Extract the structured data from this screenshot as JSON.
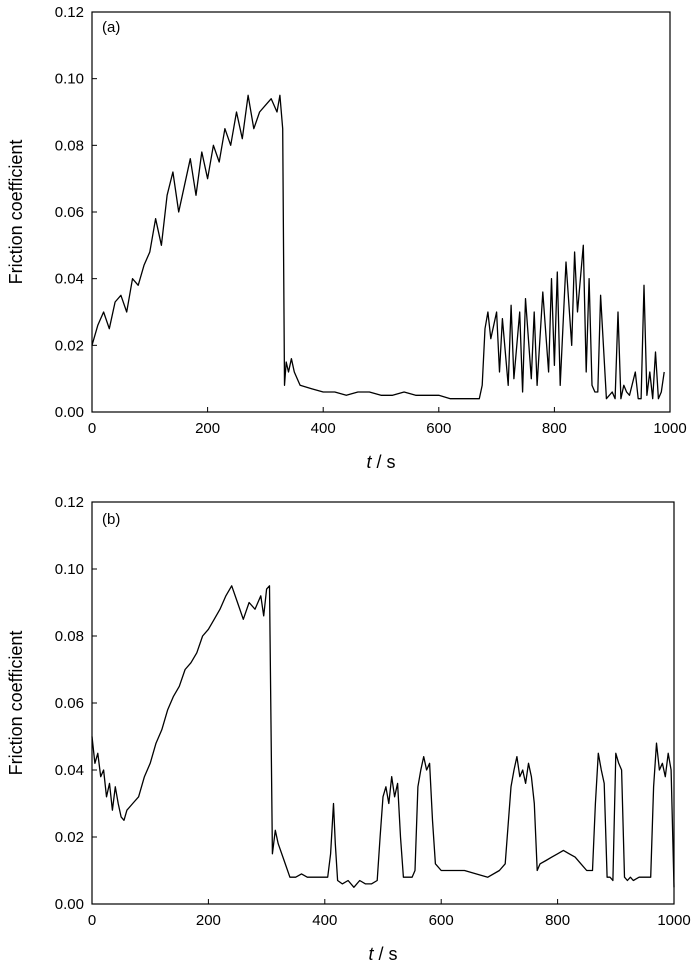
{
  "chart_data": [
    {
      "type": "line",
      "panel_label": "(a)",
      "xlabel_italic": "t",
      "xlabel_rest": " / s",
      "ylabel": "Friction coefficient",
      "xlim": [
        0,
        1000
      ],
      "ylim": [
        0,
        0.12
      ],
      "xticks": [
        "0",
        "200",
        "400",
        "600",
        "800",
        "1000"
      ],
      "yticks": [
        "0.00",
        "0.02",
        "0.04",
        "0.06",
        "0.08",
        "0.10",
        "0.12"
      ],
      "grid": false,
      "series": [
        {
          "color": "#000000",
          "x": [
            0,
            10,
            20,
            30,
            40,
            50,
            60,
            70,
            80,
            90,
            100,
            110,
            120,
            130,
            140,
            150,
            160,
            170,
            180,
            190,
            200,
            210,
            220,
            230,
            240,
            250,
            260,
            270,
            280,
            290,
            300,
            310,
            320,
            325,
            330,
            333,
            336,
            340,
            345,
            350,
            360,
            380,
            400,
            420,
            440,
            460,
            480,
            500,
            520,
            540,
            560,
            580,
            600,
            620,
            640,
            660,
            670,
            675,
            680,
            685,
            690,
            700,
            705,
            710,
            720,
            725,
            730,
            740,
            745,
            750,
            760,
            765,
            770,
            780,
            790,
            795,
            800,
            805,
            810,
            820,
            830,
            835,
            840,
            850,
            855,
            860,
            865,
            870,
            875,
            880,
            890,
            900,
            905,
            910,
            915,
            920,
            925,
            930,
            940,
            945,
            950,
            955,
            960,
            965,
            970,
            975,
            980,
            985,
            990
          ],
          "y": [
            0.02,
            0.026,
            0.03,
            0.025,
            0.033,
            0.035,
            0.03,
            0.04,
            0.038,
            0.044,
            0.048,
            0.058,
            0.05,
            0.065,
            0.072,
            0.06,
            0.068,
            0.076,
            0.065,
            0.078,
            0.07,
            0.08,
            0.075,
            0.085,
            0.08,
            0.09,
            0.082,
            0.095,
            0.085,
            0.09,
            0.092,
            0.094,
            0.09,
            0.095,
            0.085,
            0.008,
            0.015,
            0.012,
            0.016,
            0.012,
            0.008,
            0.007,
            0.006,
            0.006,
            0.005,
            0.006,
            0.006,
            0.005,
            0.005,
            0.006,
            0.005,
            0.005,
            0.005,
            0.004,
            0.004,
            0.004,
            0.004,
            0.008,
            0.025,
            0.03,
            0.022,
            0.03,
            0.012,
            0.028,
            0.008,
            0.032,
            0.01,
            0.03,
            0.006,
            0.034,
            0.01,
            0.03,
            0.008,
            0.036,
            0.012,
            0.04,
            0.014,
            0.042,
            0.008,
            0.045,
            0.02,
            0.048,
            0.03,
            0.05,
            0.012,
            0.04,
            0.008,
            0.006,
            0.006,
            0.035,
            0.004,
            0.006,
            0.004,
            0.03,
            0.004,
            0.008,
            0.006,
            0.005,
            0.012,
            0.004,
            0.004,
            0.038,
            0.005,
            0.012,
            0.004,
            0.018,
            0.004,
            0.006,
            0.012
          ]
        }
      ]
    },
    {
      "type": "line",
      "panel_label": "(b)",
      "xlabel_italic": "t",
      "xlabel_rest": " / s",
      "ylabel": "Friction coefficient",
      "xlim": [
        0,
        1000
      ],
      "ylim": [
        0,
        0.12
      ],
      "xticks": [
        "0",
        "200",
        "400",
        "600",
        "800",
        "1000"
      ],
      "yticks": [
        "0.00",
        "0.02",
        "0.04",
        "0.06",
        "0.08",
        "0.10",
        "0.12"
      ],
      "grid": false,
      "series": [
        {
          "color": "#000000",
          "x": [
            0,
            5,
            10,
            15,
            20,
            25,
            30,
            35,
            40,
            45,
            50,
            55,
            60,
            70,
            80,
            90,
            100,
            110,
            120,
            130,
            140,
            150,
            160,
            170,
            180,
            190,
            200,
            210,
            220,
            230,
            240,
            250,
            260,
            270,
            280,
            290,
            295,
            300,
            305,
            310,
            315,
            320,
            330,
            340,
            350,
            360,
            370,
            380,
            390,
            400,
            405,
            410,
            415,
            418,
            422,
            430,
            440,
            450,
            460,
            470,
            480,
            490,
            495,
            500,
            505,
            510,
            515,
            520,
            525,
            530,
            535,
            540,
            545,
            550,
            555,
            560,
            565,
            570,
            575,
            580,
            585,
            590,
            600,
            620,
            640,
            660,
            680,
            700,
            710,
            720,
            725,
            730,
            735,
            740,
            745,
            750,
            755,
            760,
            765,
            770,
            780,
            790,
            800,
            810,
            820,
            830,
            840,
            850,
            860,
            865,
            870,
            875,
            880,
            885,
            890,
            895,
            900,
            905,
            910,
            915,
            920,
            925,
            930,
            940,
            950,
            960,
            965,
            970,
            975,
            980,
            985,
            990,
            995,
            1000
          ],
          "y": [
            0.05,
            0.042,
            0.045,
            0.038,
            0.04,
            0.032,
            0.036,
            0.028,
            0.035,
            0.03,
            0.026,
            0.025,
            0.028,
            0.03,
            0.032,
            0.038,
            0.042,
            0.048,
            0.052,
            0.058,
            0.062,
            0.065,
            0.07,
            0.072,
            0.075,
            0.08,
            0.082,
            0.085,
            0.088,
            0.092,
            0.095,
            0.09,
            0.085,
            0.09,
            0.088,
            0.092,
            0.086,
            0.094,
            0.095,
            0.015,
            0.022,
            0.018,
            0.013,
            0.008,
            0.008,
            0.009,
            0.008,
            0.008,
            0.008,
            0.008,
            0.008,
            0.015,
            0.03,
            0.018,
            0.007,
            0.006,
            0.007,
            0.005,
            0.007,
            0.006,
            0.006,
            0.007,
            0.02,
            0.032,
            0.035,
            0.03,
            0.038,
            0.032,
            0.036,
            0.02,
            0.008,
            0.008,
            0.008,
            0.008,
            0.01,
            0.035,
            0.04,
            0.044,
            0.04,
            0.042,
            0.025,
            0.012,
            0.01,
            0.01,
            0.01,
            0.009,
            0.008,
            0.01,
            0.012,
            0.035,
            0.04,
            0.044,
            0.038,
            0.04,
            0.036,
            0.042,
            0.038,
            0.03,
            0.01,
            0.012,
            0.013,
            0.014,
            0.015,
            0.016,
            0.015,
            0.014,
            0.012,
            0.01,
            0.01,
            0.03,
            0.045,
            0.04,
            0.036,
            0.008,
            0.008,
            0.007,
            0.045,
            0.042,
            0.04,
            0.008,
            0.007,
            0.008,
            0.007,
            0.008,
            0.008,
            0.008,
            0.035,
            0.048,
            0.04,
            0.042,
            0.038,
            0.045,
            0.04,
            0.005
          ]
        }
      ]
    }
  ]
}
